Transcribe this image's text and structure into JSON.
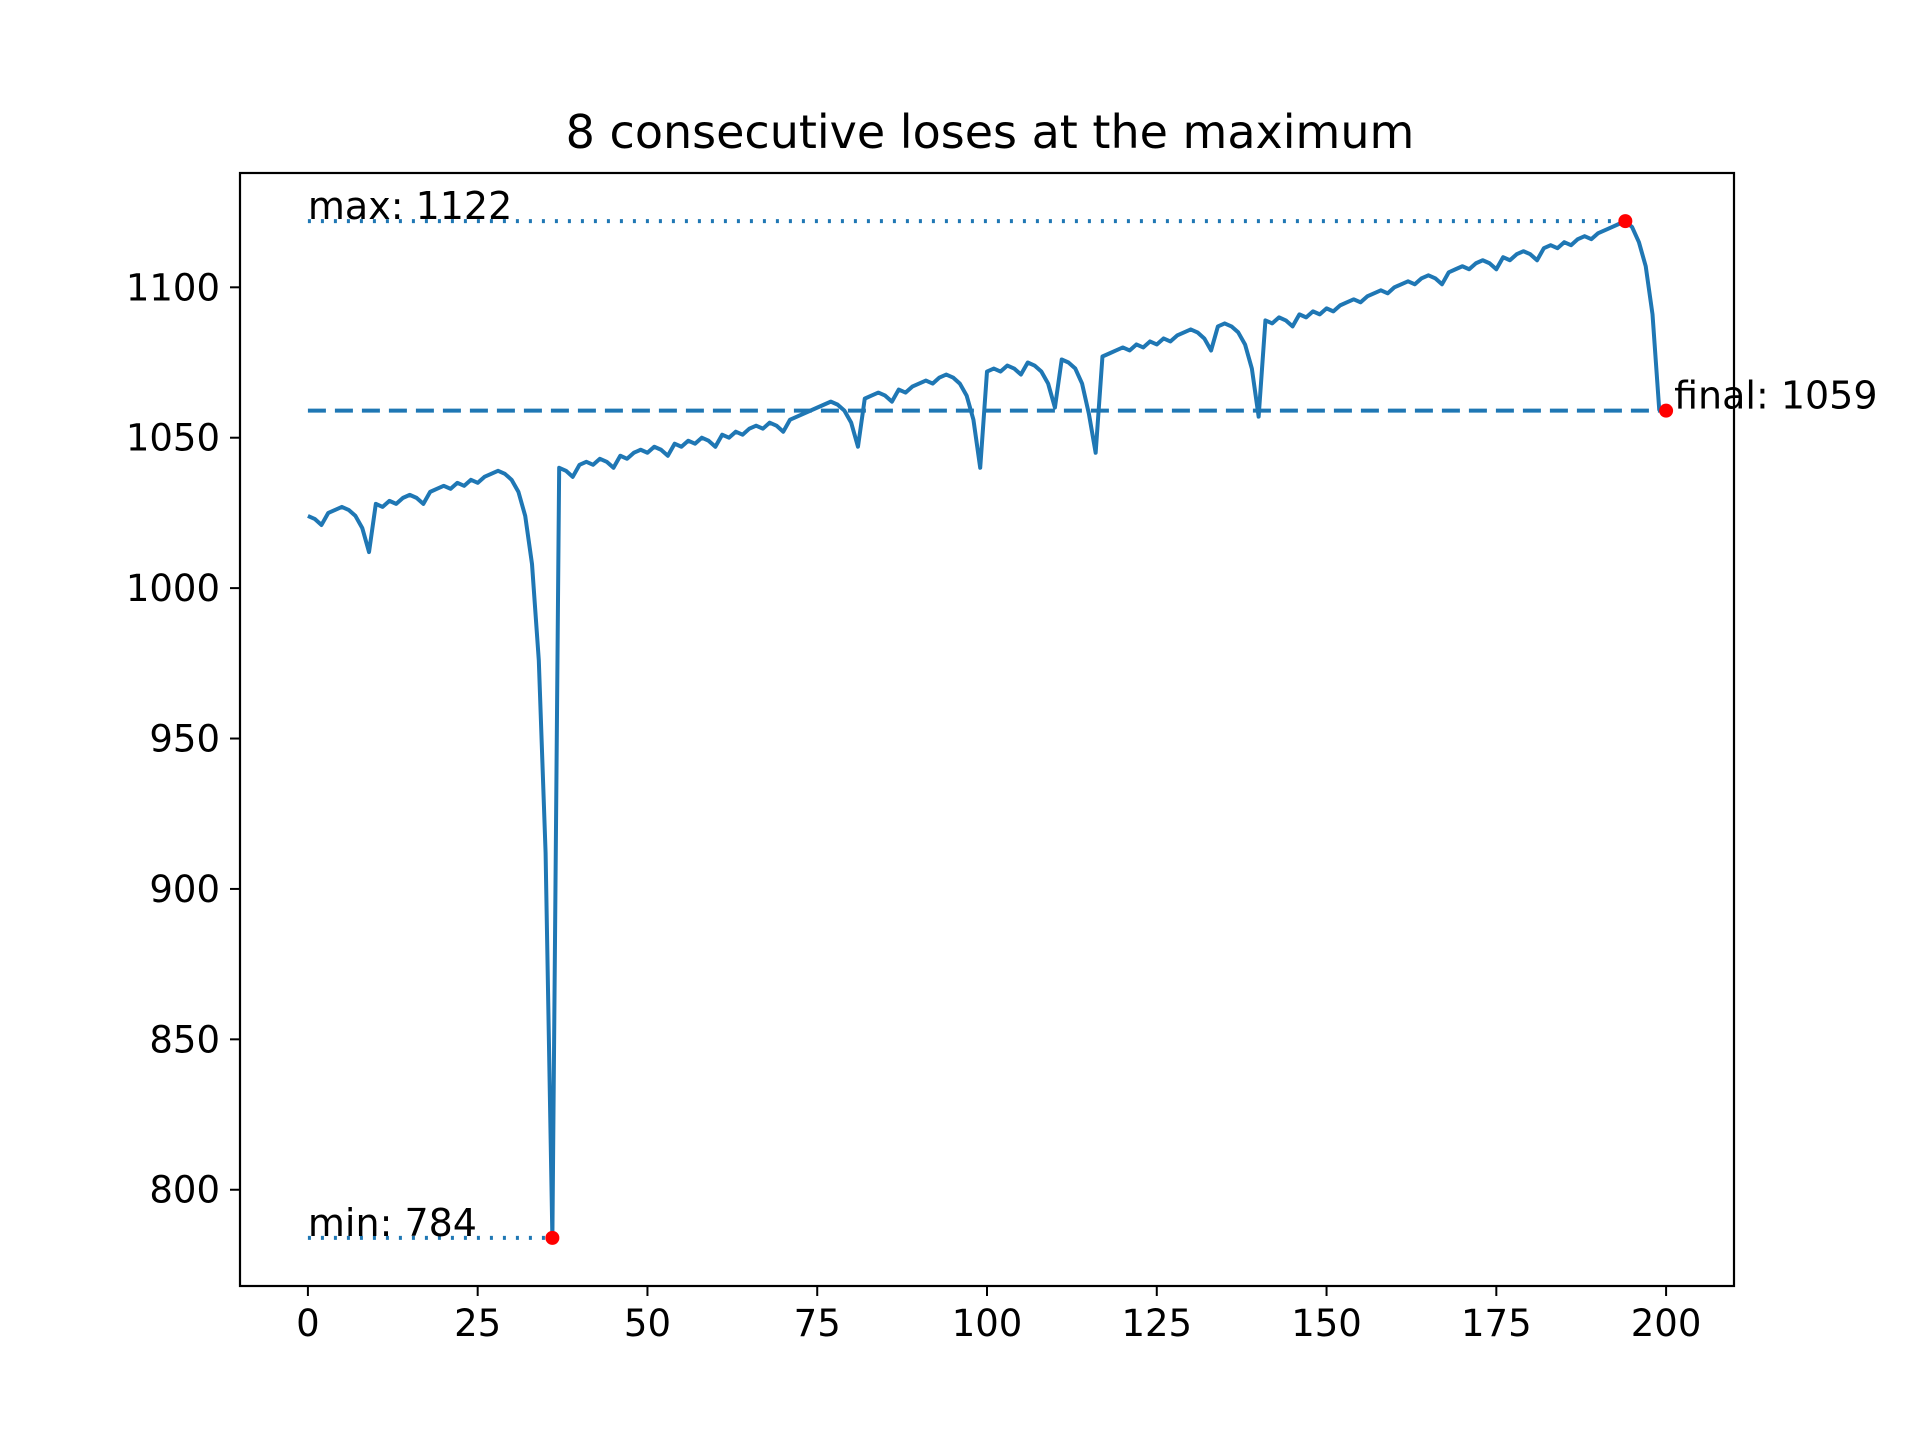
{
  "chart_data": {
    "type": "line",
    "title": "8 consecutive loses at the maximum",
    "xlabel": "",
    "ylabel": "",
    "xlim": [
      -10,
      210
    ],
    "ylim": [
      768,
      1138
    ],
    "x_ticks": [
      0,
      25,
      50,
      75,
      100,
      125,
      150,
      175,
      200
    ],
    "y_ticks": [
      800,
      850,
      900,
      950,
      1000,
      1050,
      1100
    ],
    "grid": false,
    "line_color": "#1f77b4",
    "marker_color": "#ff0000",
    "series": [
      {
        "values": [
          1024,
          1023,
          1021,
          1025,
          1026,
          1027,
          1026,
          1024,
          1020,
          1012,
          1028,
          1027,
          1029,
          1028,
          1030,
          1031,
          1030,
          1028,
          1032,
          1033,
          1034,
          1033,
          1035,
          1034,
          1036,
          1035,
          1037,
          1038,
          1039,
          1038,
          1036,
          1032,
          1024,
          1008,
          976,
          912,
          784,
          1040,
          1039,
          1037,
          1041,
          1042,
          1041,
          1043,
          1042,
          1040,
          1044,
          1043,
          1045,
          1046,
          1045,
          1047,
          1046,
          1044,
          1048,
          1047,
          1049,
          1048,
          1050,
          1049,
          1047,
          1051,
          1050,
          1052,
          1051,
          1053,
          1054,
          1053,
          1055,
          1054,
          1052,
          1056,
          1057,
          1058,
          1059,
          1060,
          1061,
          1062,
          1061,
          1059,
          1055,
          1047,
          1063,
          1064,
          1065,
          1064,
          1062,
          1066,
          1065,
          1067,
          1068,
          1069,
          1068,
          1070,
          1071,
          1070,
          1068,
          1064,
          1056,
          1040,
          1072,
          1073,
          1072,
          1074,
          1073,
          1071,
          1075,
          1074,
          1072,
          1068,
          1060,
          1076,
          1075,
          1073,
          1068,
          1058,
          1045,
          1077,
          1078,
          1079,
          1080,
          1079,
          1081,
          1080,
          1082,
          1081,
          1083,
          1082,
          1084,
          1085,
          1086,
          1085,
          1083,
          1079,
          1087,
          1088,
          1087,
          1085,
          1081,
          1073,
          1057,
          1089,
          1088,
          1090,
          1089,
          1087,
          1091,
          1090,
          1092,
          1091,
          1093,
          1092,
          1094,
          1095,
          1096,
          1095,
          1097,
          1098,
          1099,
          1098,
          1100,
          1101,
          1102,
          1101,
          1103,
          1104,
          1103,
          1101,
          1105,
          1106,
          1107,
          1106,
          1108,
          1109,
          1108,
          1106,
          1110,
          1109,
          1111,
          1112,
          1111,
          1109,
          1113,
          1114,
          1113,
          1115,
          1114,
          1116,
          1117,
          1116,
          1118,
          1119,
          1120,
          1121,
          1122,
          1120,
          1115,
          1107,
          1091,
          1059
        ]
      }
    ],
    "annotations": [
      {
        "label": "max: 1122",
        "x": 194,
        "y": 1122
      },
      {
        "label": "min: 784",
        "x": 36,
        "y": 784
      },
      {
        "label": "final: 1059",
        "x": 200,
        "y": 1059
      }
    ],
    "reference_lines": [
      {
        "style": "dotted",
        "y": 1122,
        "x_from": 0,
        "x_to": 194
      },
      {
        "style": "dotted",
        "y": 784,
        "x_from": 0,
        "x_to": 36
      },
      {
        "style": "dashed",
        "y": 1059,
        "x_from": 0,
        "x_to": 200
      }
    ]
  }
}
